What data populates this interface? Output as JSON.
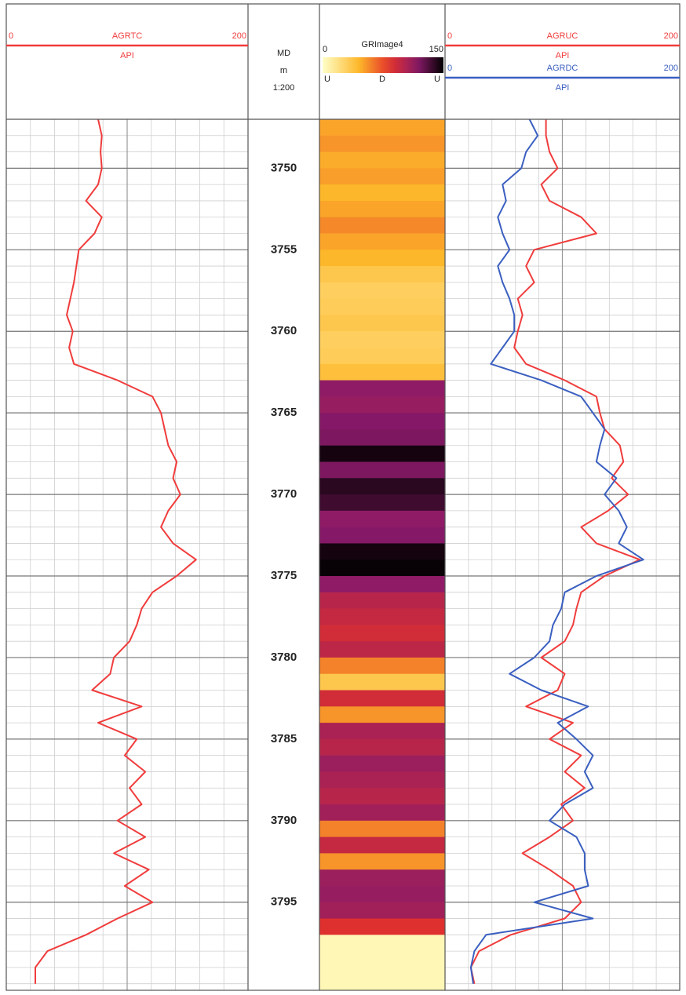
{
  "chart_data": [
    {
      "type": "line",
      "depths": [
        3747,
        3748,
        3749,
        3750,
        3751,
        3752,
        3753,
        3754,
        3755,
        3756,
        3757,
        3758,
        3759,
        3760,
        3761,
        3762,
        3763,
        3764,
        3765,
        3766,
        3767,
        3768,
        3769,
        3770,
        3771,
        3772,
        3773,
        3774,
        3775,
        3776,
        3777,
        3778,
        3779,
        3780,
        3781,
        3782,
        3783,
        3784,
        3785,
        3786,
        3787,
        3788,
        3789,
        3790,
        3791,
        3792,
        3793,
        3794,
        3795,
        3796,
        3797,
        3798,
        3799,
        3800
      ],
      "ylim": [
        3747,
        3800.4
      ],
      "yticks": [
        3750,
        3755,
        3760,
        3765,
        3770,
        3775,
        3780,
        3785,
        3790,
        3795
      ],
      "series": [
        {
          "name": "AGRTC",
          "unit": "API",
          "color": "#f03c3c",
          "xlim": [
            0,
            200
          ],
          "xticks": [
            0,
            200
          ],
          "values": [
            76,
            79,
            78,
            79,
            76,
            66,
            79,
            73,
            60,
            58,
            56,
            53,
            50,
            55,
            52,
            56,
            92,
            121,
            128,
            131,
            134,
            141,
            138,
            144,
            134,
            128,
            138,
            157,
            141,
            121,
            112,
            108,
            102,
            89,
            86,
            71,
            112,
            76,
            108,
            98,
            115,
            102,
            112,
            92,
            115,
            89,
            118,
            98,
            121,
            92,
            66,
            34,
            24,
            24
          ]
        }
      ]
    },
    {
      "type": "depth",
      "title": "MD",
      "unit": "m",
      "scale": "1:200",
      "ylim": [
        3747,
        3800.4
      ],
      "yticks": [
        3750,
        3755,
        3760,
        3765,
        3770,
        3775,
        3780,
        3785,
        3790,
        3795
      ]
    },
    {
      "type": "image",
      "title": "GRImage4",
      "clim": [
        0,
        150
      ],
      "cticks": [
        0,
        150
      ],
      "orientation_labels": [
        "U",
        "D",
        "U"
      ],
      "ylim": [
        3747,
        3800.4
      ],
      "depths": [
        3747,
        3748,
        3749,
        3750,
        3751,
        3752,
        3753,
        3754,
        3755,
        3756,
        3757,
        3758,
        3759,
        3760,
        3761,
        3762,
        3763,
        3764,
        3765,
        3766,
        3767,
        3768,
        3769,
        3770,
        3771,
        3772,
        3773,
        3774,
        3775,
        3776,
        3777,
        3778,
        3779,
        3780,
        3781,
        3782,
        3783,
        3784,
        3785,
        3786,
        3787,
        3788,
        3789,
        3790,
        3791,
        3792,
        3793,
        3794,
        3795,
        3796,
        3797,
        3798,
        3799,
        3800
      ],
      "values": [
        50,
        55,
        48,
        52,
        45,
        50,
        58,
        50,
        45,
        35,
        30,
        32,
        35,
        30,
        32,
        40,
        115,
        112,
        118,
        120,
        145,
        120,
        140,
        135,
        115,
        118,
        145,
        148,
        115,
        100,
        95,
        90,
        98,
        60,
        35,
        90,
        55,
        105,
        100,
        110,
        105,
        100,
        108,
        60,
        95,
        55,
        110,
        112,
        108,
        85,
        5,
        5,
        5,
        5
      ]
    },
    {
      "type": "line",
      "depths": [
        3747,
        3748,
        3749,
        3750,
        3751,
        3752,
        3753,
        3754,
        3755,
        3756,
        3757,
        3758,
        3759,
        3760,
        3761,
        3762,
        3763,
        3764,
        3765,
        3766,
        3767,
        3768,
        3769,
        3770,
        3771,
        3772,
        3773,
        3774,
        3775,
        3776,
        3777,
        3778,
        3779,
        3780,
        3781,
        3782,
        3783,
        3784,
        3785,
        3786,
        3787,
        3788,
        3789,
        3790,
        3791,
        3792,
        3793,
        3794,
        3795,
        3796,
        3797,
        3798,
        3799,
        3800
      ],
      "ylim": [
        3747,
        3800.4
      ],
      "yticks": [
        3750,
        3755,
        3760,
        3765,
        3770,
        3775,
        3780,
        3785,
        3790,
        3795
      ],
      "series": [
        {
          "name": "AGRUC",
          "unit": "API",
          "color": "#f03c3c",
          "xlim": [
            0,
            200
          ],
          "xticks": [
            0,
            200
          ],
          "values": [
            86,
            86,
            89,
            96,
            82,
            89,
            116,
            129,
            76,
            69,
            76,
            62,
            66,
            62,
            59,
            69,
            102,
            129,
            132,
            136,
            149,
            152,
            142,
            156,
            139,
            116,
            129,
            166,
            136,
            116,
            112,
            109,
            102,
            82,
            102,
            96,
            69,
            109,
            89,
            116,
            102,
            119,
            99,
            109,
            89,
            66,
            89,
            109,
            116,
            102,
            56,
            29,
            22,
            25
          ]
        },
        {
          "name": "AGRDC",
          "unit": "API",
          "color": "#3a5fc0",
          "xlim": [
            0,
            200
          ],
          "xticks": [
            0,
            200
          ],
          "values": [
            72,
            79,
            69,
            65,
            49,
            52,
            45,
            49,
            55,
            45,
            49,
            55,
            59,
            59,
            49,
            39,
            82,
            116,
            126,
            136,
            132,
            129,
            146,
            136,
            148,
            155,
            148,
            169,
            129,
            102,
            99,
            92,
            89,
            76,
            55,
            82,
            122,
            96,
            112,
            126,
            119,
            126,
            102,
            89,
            112,
            119,
            119,
            122,
            76,
            126,
            35,
            25,
            22,
            24
          ]
        }
      ]
    }
  ]
}
